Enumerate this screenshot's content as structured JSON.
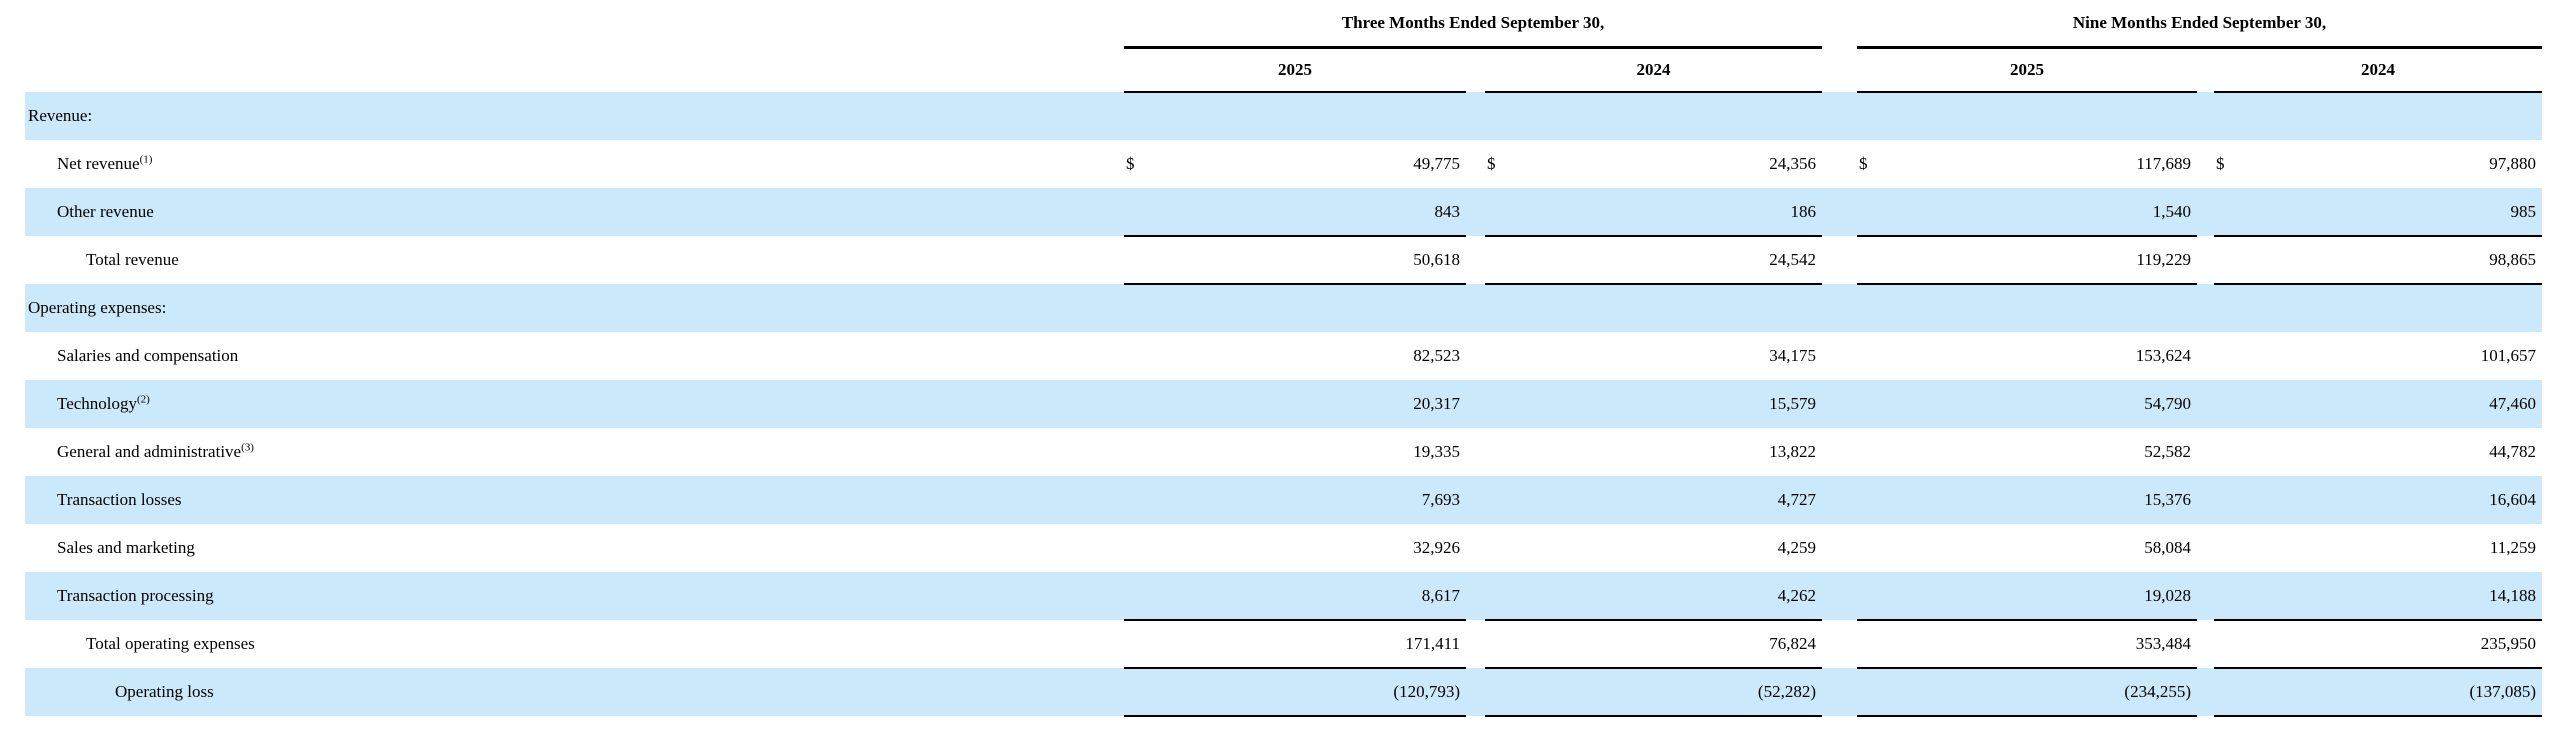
{
  "table": {
    "currency_symbol": "$",
    "colors": {
      "row_highlight": "#cbe9fb",
      "text": "#000000",
      "rule": "#000000"
    },
    "period_headers": [
      {
        "label": "Three Months Ended September 30,"
      },
      {
        "label": "Nine Months Ended September 30,"
      }
    ],
    "year_headers": [
      "2025",
      "2024",
      "2025",
      "2024"
    ],
    "rows": [
      {
        "label": "Revenue:",
        "indent": 0,
        "shaded": true,
        "dollar": false,
        "border_bottom": false,
        "values": [
          "",
          "",
          "",
          ""
        ]
      },
      {
        "label": "Net revenue",
        "sup": "(1)",
        "indent": 1,
        "shaded": false,
        "dollar": true,
        "border_bottom": false,
        "values": [
          "49,775",
          "24,356",
          "117,689",
          "97,880"
        ]
      },
      {
        "label": "Other revenue",
        "indent": 1,
        "shaded": true,
        "dollar": false,
        "border_bottom": true,
        "values": [
          "843",
          "186",
          "1,540",
          "985"
        ]
      },
      {
        "label": "Total revenue",
        "indent": 2,
        "shaded": false,
        "dollar": false,
        "border_bottom": true,
        "values": [
          "50,618",
          "24,542",
          "119,229",
          "98,865"
        ]
      },
      {
        "label": "Operating expenses:",
        "indent": 0,
        "shaded": true,
        "dollar": false,
        "border_bottom": false,
        "values": [
          "",
          "",
          "",
          ""
        ]
      },
      {
        "label": "Salaries and compensation",
        "indent": 1,
        "shaded": false,
        "dollar": false,
        "border_bottom": false,
        "values": [
          "82,523",
          "34,175",
          "153,624",
          "101,657"
        ]
      },
      {
        "label": "Technology",
        "sup": "(2)",
        "indent": 1,
        "shaded": true,
        "dollar": false,
        "border_bottom": false,
        "values": [
          "20,317",
          "15,579",
          "54,790",
          "47,460"
        ]
      },
      {
        "label": "General and administrative",
        "sup": "(3)",
        "indent": 1,
        "shaded": false,
        "dollar": false,
        "border_bottom": false,
        "values": [
          "19,335",
          "13,822",
          "52,582",
          "44,782"
        ]
      },
      {
        "label": "Transaction losses",
        "indent": 1,
        "shaded": true,
        "dollar": false,
        "border_bottom": false,
        "values": [
          "7,693",
          "4,727",
          "15,376",
          "16,604"
        ]
      },
      {
        "label": "Sales and marketing",
        "indent": 1,
        "shaded": false,
        "dollar": false,
        "border_bottom": false,
        "values": [
          "32,926",
          "4,259",
          "58,084",
          "11,259"
        ]
      },
      {
        "label": "Transaction processing",
        "indent": 1,
        "shaded": true,
        "dollar": false,
        "border_bottom": true,
        "values": [
          "8,617",
          "4,262",
          "19,028",
          "14,188"
        ]
      },
      {
        "label": "Total operating expenses",
        "indent": 2,
        "shaded": false,
        "dollar": false,
        "border_bottom": true,
        "values": [
          "171,411",
          "76,824",
          "353,484",
          "235,950"
        ]
      },
      {
        "label": "Operating loss",
        "indent": 3,
        "shaded": true,
        "dollar": false,
        "border_bottom": true,
        "values": [
          "(120,793)",
          "(52,282)",
          "(234,255)",
          "(137,085)"
        ]
      }
    ]
  }
}
